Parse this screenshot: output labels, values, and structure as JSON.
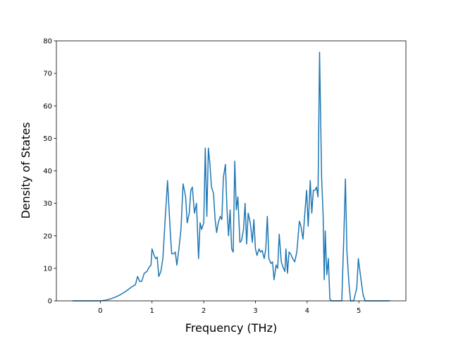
{
  "chart_data": {
    "type": "line",
    "x_label": "Frequency (THz)",
    "y_label": "Density of States",
    "x": [
      -0.54,
      -0.3,
      0,
      0.1,
      0.2,
      0.3,
      0.4,
      0.5,
      0.6,
      0.68,
      0.72,
      0.76,
      0.8,
      0.85,
      0.9,
      0.95,
      0.98,
      1.0,
      1.04,
      1.07,
      1.1,
      1.13,
      1.17,
      1.21,
      1.25,
      1.3,
      1.35,
      1.38,
      1.42,
      1.45,
      1.48,
      1.52,
      1.56,
      1.6,
      1.65,
      1.68,
      1.72,
      1.75,
      1.78,
      1.82,
      1.86,
      1.9,
      1.93,
      1.96,
      2.0,
      2.03,
      2.06,
      2.09,
      2.12,
      2.15,
      2.19,
      2.22,
      2.25,
      2.28,
      2.32,
      2.35,
      2.38,
      2.42,
      2.45,
      2.48,
      2.51,
      2.54,
      2.57,
      2.6,
      2.63,
      2.66,
      2.7,
      2.73,
      2.77,
      2.8,
      2.83,
      2.86,
      2.9,
      2.94,
      2.97,
      3.0,
      3.03,
      3.07,
      3.1,
      3.13,
      3.17,
      3.2,
      3.23,
      3.26,
      3.3,
      3.33,
      3.36,
      3.4,
      3.43,
      3.46,
      3.5,
      3.53,
      3.57,
      3.59,
      3.62,
      3.65,
      3.68,
      3.72,
      3.76,
      3.8,
      3.85,
      3.88,
      3.92,
      3.96,
      3.99,
      4.02,
      4.06,
      4.09,
      4.12,
      4.15,
      4.18,
      4.21,
      4.24,
      4.28,
      4.31,
      4.33,
      4.35,
      4.38,
      4.41,
      4.44,
      4.47,
      4.67,
      4.71,
      4.74,
      4.77,
      4.81,
      4.84,
      4.9,
      4.96,
      4.99,
      5.03,
      5.08,
      5.12,
      5.3,
      5.6
    ],
    "series": [
      {
        "color": "#1f77b4",
        "values": [
          0,
          0,
          0,
          0.2,
          0.6,
          1.2,
          2,
          3,
          4.2,
          5,
          7.5,
          6,
          6,
          8.5,
          9,
          10.5,
          11,
          16,
          14,
          13,
          13.5,
          7.5,
          9,
          13,
          24,
          37,
          22,
          14.5,
          14.5,
          15,
          11,
          16,
          22,
          36,
          32,
          24,
          27,
          34,
          35,
          27,
          30,
          13,
          24,
          22,
          24,
          47,
          26,
          47,
          42,
          35,
          33,
          25,
          21,
          24,
          26,
          25,
          38,
          42,
          28,
          20,
          28,
          16,
          15,
          43,
          28,
          32,
          18,
          18.5,
          22,
          30,
          17.5,
          27,
          24,
          18,
          25,
          16,
          14,
          16,
          15,
          15.5,
          13,
          16,
          26,
          13,
          11.5,
          12,
          6.5,
          11,
          10,
          20.5,
          12,
          10.5,
          9,
          16,
          8.5,
          15,
          14.5,
          13,
          12,
          15,
          24.5,
          23,
          19,
          28,
          34,
          23,
          37,
          27,
          34,
          34,
          35,
          32,
          76.5,
          38,
          26,
          6.5,
          21.5,
          8,
          13,
          0.5,
          0,
          0,
          20,
          37.5,
          15,
          5,
          0,
          0,
          4,
          13,
          8,
          2,
          0,
          0,
          0
        ]
      }
    ],
    "xlim": [
      -0.85,
      5.91
    ],
    "ylim": [
      0,
      80
    ],
    "xticks": [
      0,
      1,
      2,
      3,
      4,
      5
    ],
    "yticks": [
      0,
      10,
      20,
      30,
      40,
      50,
      60,
      70,
      80
    ]
  }
}
